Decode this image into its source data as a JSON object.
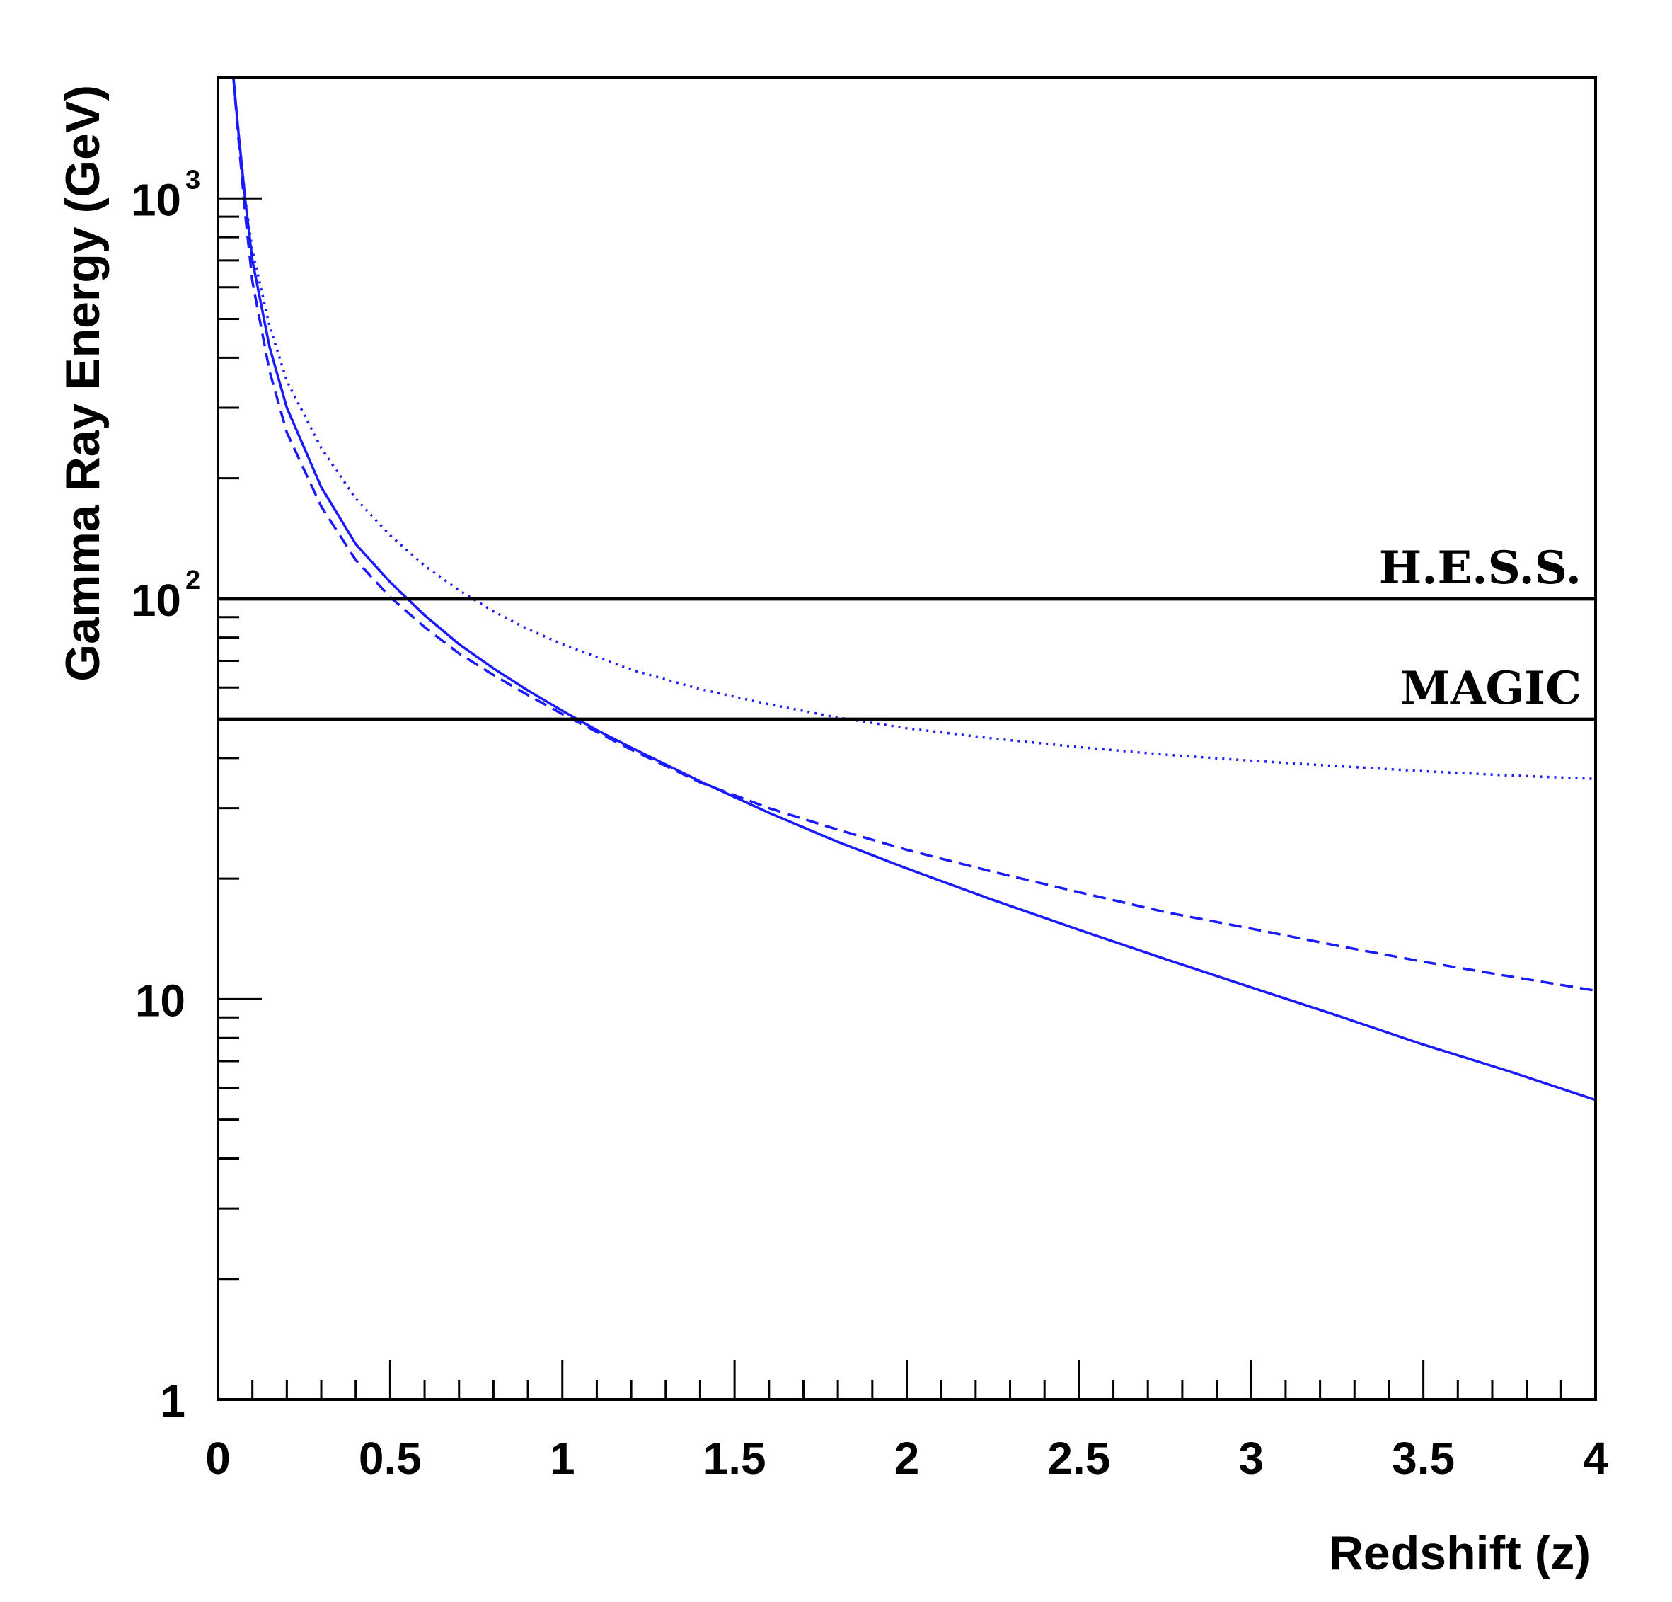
{
  "chart_data": {
    "type": "line",
    "title": "",
    "xlabel": "Redshift (z)",
    "ylabel": "Gamma Ray Energy (GeV)",
    "xlim": [
      0,
      4
    ],
    "ylim": [
      1,
      2000
    ],
    "yscale": "log",
    "grid": false,
    "x_ticks": [
      {
        "value": 0,
        "label": "0"
      },
      {
        "value": 0.5,
        "label": "0.5"
      },
      {
        "value": 1,
        "label": "1"
      },
      {
        "value": 1.5,
        "label": "1.5"
      },
      {
        "value": 2,
        "label": "2"
      },
      {
        "value": 2.5,
        "label": "2.5"
      },
      {
        "value": 3,
        "label": "3"
      },
      {
        "value": 3.5,
        "label": "3.5"
      },
      {
        "value": 4,
        "label": "4"
      }
    ],
    "y_ticks": [
      {
        "value": 1,
        "base": "1",
        "exp": ""
      },
      {
        "value": 10,
        "base": "10",
        "exp": ""
      },
      {
        "value": 100,
        "base": "10",
        "exp": "2"
      },
      {
        "value": 1000,
        "base": "10",
        "exp": "3"
      }
    ],
    "thresholds": [
      {
        "name": "H.E.S.S.",
        "value": 100
      },
      {
        "name": "MAGIC",
        "value": 50
      }
    ],
    "series": [
      {
        "name": "solid",
        "style": "solid",
        "color": "#1a1aff",
        "x": [
          0.045,
          0.06,
          0.08,
          0.1,
          0.15,
          0.2,
          0.3,
          0.4,
          0.5,
          0.6,
          0.7,
          0.8,
          0.9,
          1.0,
          1.1,
          1.2,
          1.4,
          1.6,
          1.8,
          2.0,
          2.25,
          2.5,
          2.75,
          3.0,
          3.25,
          3.5,
          3.75,
          4.0
        ],
        "y": [
          2000,
          1450,
          980,
          700,
          425,
          300,
          190,
          137,
          110,
          91,
          77,
          67,
          59,
          52.5,
          47,
          42.5,
          35,
          29.2,
          24.7,
          21.2,
          17.7,
          14.9,
          12.6,
          10.7,
          9.1,
          7.7,
          6.6,
          5.6
        ]
      },
      {
        "name": "dashed",
        "style": "dashed",
        "color": "#1a1aff",
        "x": [
          0.045,
          0.06,
          0.08,
          0.1,
          0.15,
          0.2,
          0.3,
          0.4,
          0.5,
          0.6,
          0.7,
          0.8,
          0.9,
          1.0,
          1.1,
          1.2,
          1.4,
          1.6,
          1.8,
          2.0,
          2.25,
          2.5,
          2.75,
          3.0,
          3.25,
          3.5,
          3.75,
          4.0
        ],
        "y": [
          2000,
          1400,
          900,
          620,
          370,
          260,
          170,
          125,
          101,
          85,
          73,
          64.5,
          57.5,
          51.5,
          46.5,
          42,
          34.8,
          30,
          26.5,
          23.6,
          20.8,
          18.5,
          16.5,
          15,
          13.6,
          12.4,
          11.4,
          10.5
        ]
      },
      {
        "name": "dotted",
        "style": "dotted",
        "color": "#1a1aff",
        "x": [
          0.045,
          0.06,
          0.08,
          0.1,
          0.15,
          0.2,
          0.3,
          0.4,
          0.5,
          0.6,
          0.7,
          0.8,
          0.9,
          1.0,
          1.2,
          1.4,
          1.6,
          1.8,
          2.0,
          2.25,
          2.5,
          2.75,
          3.0,
          3.25,
          3.5,
          3.75,
          4.0
        ],
        "y": [
          2000,
          1450,
          990,
          740,
          480,
          350,
          238,
          178,
          144,
          121,
          105,
          93,
          84,
          77,
          66.5,
          59.5,
          54.5,
          50.5,
          47.5,
          44.8,
          42.6,
          40.8,
          39.4,
          38.2,
          37.1,
          36.2,
          35.5
        ]
      }
    ]
  }
}
